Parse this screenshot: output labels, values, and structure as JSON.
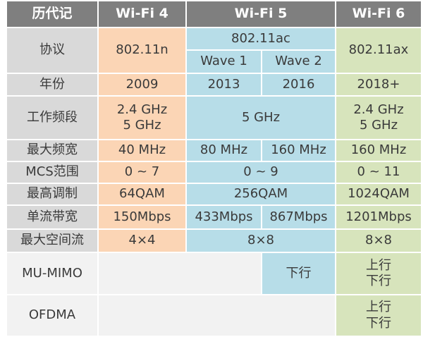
{
  "colors": {
    "header": "#7f7f7f",
    "label": "#d9d9d9",
    "wifi4": "#fbd5b5",
    "wifi5": "#b7dde8",
    "wifi6": "#d7e4bc",
    "empty": "#f2f2f2"
  },
  "header": [
    "历代记",
    "Wi-Fi 4",
    "Wi-Fi 5",
    "Wi-Fi 6"
  ],
  "protocol": {
    "label": "协议",
    "wifi4": "802.11n",
    "wifi5": "802.11ac",
    "wave1": "Wave 1",
    "wave2": "Wave 2",
    "wifi6": "802.11ax"
  },
  "year": {
    "label": "年份",
    "wifi4": "2009",
    "wave1": "2013",
    "wave2": "2016",
    "wifi6": "2018+"
  },
  "band": {
    "label": "工作频段",
    "wifi4_a": "2.4 GHz",
    "wifi4_b": "5 GHz",
    "wifi5": "5 GHz",
    "wifi6_a": "2.4 GHz",
    "wifi6_b": "5 GHz"
  },
  "bandwidth": {
    "label": "最大频宽",
    "wifi4": "40 MHz",
    "wave1": "80 MHz",
    "wave2": "160 MHz",
    "wifi6": "160 MHz"
  },
  "mcs": {
    "label": "MCS范围",
    "wifi4": "0 ~ 7",
    "wifi5": "0 ~ 9",
    "wifi6": "0 ~ 11"
  },
  "modulation": {
    "label": "最高调制",
    "wifi4": "64QAM",
    "wifi5": "256QAM",
    "wifi6": "1024QAM"
  },
  "stream_rate": {
    "label": "单流带宽",
    "wifi4": "150Mbps",
    "wave1": "433Mbps",
    "wave2": "867Mbps",
    "wifi6": "1201Mbps"
  },
  "spatial": {
    "label": "最大空间流",
    "wifi4": "4×4",
    "wifi5": "8×8",
    "wifi6": "8×8"
  },
  "mumimo": {
    "label": "MU-MIMO",
    "wave2": "下行",
    "wifi6_a": "上行",
    "wifi6_b": "下行"
  },
  "ofdma": {
    "label": "OFDMA",
    "wifi6_a": "上行",
    "wifi6_b": "下行"
  }
}
